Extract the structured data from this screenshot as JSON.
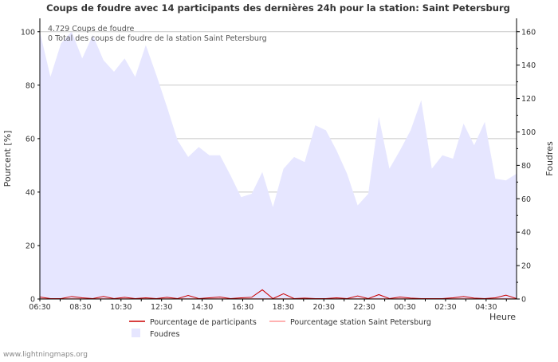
{
  "chart_data": {
    "type": "area",
    "title": "Coups de foudre avec 14 participants des dernières 24h pour la station: Saint Petersburg",
    "ylabel_left": "Pourcent   [%]",
    "ylabel_right": "Foudres",
    "xlabel": "Heure",
    "ylim_left": [
      0,
      105
    ],
    "ylim_right": [
      0,
      168
    ],
    "yticks_left": [
      0,
      20,
      40,
      60,
      80,
      100
    ],
    "yticks_right": [
      0,
      20,
      40,
      60,
      80,
      100,
      120,
      140,
      160
    ],
    "xticks": [
      "06:30",
      "08:30",
      "10:30",
      "12:30",
      "14:30",
      "16:30",
      "18:30",
      "20:30",
      "22:30",
      "00:30",
      "02:30",
      "04:30"
    ],
    "annotations": [
      "4.729  Coups de foudre",
      "0 Total des coups de foudre de la station Saint Petersburg"
    ],
    "series": [
      {
        "name": "Foudres",
        "axis": "right",
        "color": "#e6e6ff",
        "values": [
          160,
          133,
          153,
          160,
          144,
          158,
          143,
          136,
          144,
          133,
          152,
          134,
          115,
          95,
          85,
          91,
          86,
          86,
          74,
          61,
          63,
          76,
          55,
          78,
          85,
          82,
          104,
          101,
          89,
          75,
          56,
          63,
          109,
          78,
          89,
          101,
          119,
          78,
          86,
          84,
          105,
          92,
          106,
          72,
          71,
          75
        ]
      },
      {
        "name": "Pourcentage de participants",
        "axis": "left",
        "color": "#cc0000",
        "values": [
          0.6,
          0,
          0,
          0.8,
          0.3,
          0,
          0.8,
          0,
          0.5,
          0,
          0.3,
          0,
          0.5,
          0,
          1.2,
          0,
          0.3,
          0.6,
          0,
          0.3,
          0.5,
          3.3,
          0,
          1.8,
          0,
          0.2,
          0,
          0,
          0.3,
          0,
          1.0,
          0,
          1.5,
          0,
          0.6,
          0.2,
          0,
          0,
          0,
          0.3,
          0.8,
          0.2,
          0,
          0.3,
          1.3,
          0
        ]
      },
      {
        "name": "Pourcentage station Saint Petersburg",
        "axis": "left",
        "color": "#ff9999",
        "values": [
          0,
          0,
          0,
          0,
          0,
          0,
          0,
          0,
          0,
          0,
          0,
          0,
          0,
          0,
          0,
          0,
          0,
          0,
          0,
          0,
          0,
          0,
          0,
          0,
          0,
          0,
          0,
          0,
          0,
          0,
          0,
          0,
          0,
          0,
          0,
          0,
          0,
          0,
          0,
          0,
          0,
          0,
          0,
          0,
          0,
          0
        ]
      }
    ]
  },
  "legend": {
    "participants": "Pourcentage de participants",
    "station": "Pourcentage station Saint Petersburg",
    "foudres": "Foudres"
  },
  "footer": {
    "site": "www.lightningmaps.org"
  }
}
